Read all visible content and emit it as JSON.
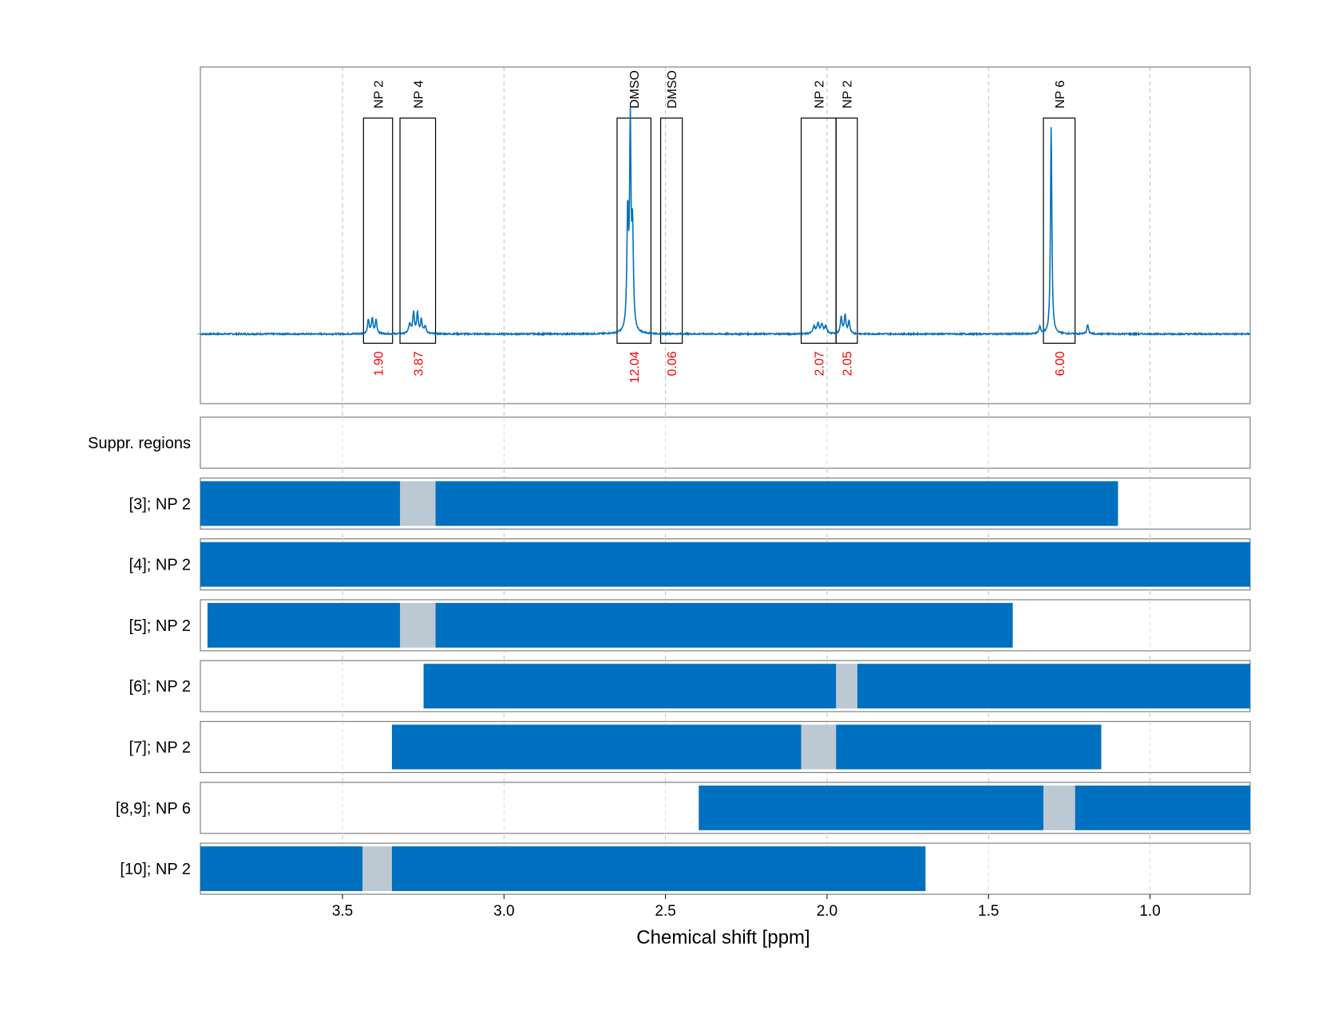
{
  "chart_data": {
    "type": "nmr-spectrum-with-range-bars",
    "xlabel": "Chemical shift [ppm]",
    "x_axis_reversed": true,
    "xlim": [
      3.94,
      0.69
    ],
    "x_ticks": [
      3.5,
      3.0,
      2.5,
      2.0,
      1.5,
      1.0
    ],
    "x_tick_labels": [
      "3.5",
      "3.0",
      "2.5",
      "2.0",
      "1.5",
      "1.0"
    ],
    "grid": "dashed vertical gridlines at x ticks",
    "colors": {
      "spectrum": "#0070C0",
      "bar": "#0070C0",
      "bar_gap": "#BCC9D2",
      "integral_label": "#FF0000",
      "grid": "#BFBFBF",
      "frame": "#808080"
    },
    "spectrum": {
      "baseline": 0.0,
      "ylim": [
        -0.3,
        1.15
      ],
      "peaks": [
        {
          "x": 3.42,
          "h": 0.06,
          "w": 0.003
        },
        {
          "x": 3.408,
          "h": 0.065,
          "w": 0.003
        },
        {
          "x": 3.396,
          "h": 0.06,
          "w": 0.003
        },
        {
          "x": 3.292,
          "h": 0.04,
          "w": 0.004
        },
        {
          "x": 3.28,
          "h": 0.09,
          "w": 0.003
        },
        {
          "x": 3.268,
          "h": 0.09,
          "w": 0.003
        },
        {
          "x": 3.256,
          "h": 0.06,
          "w": 0.003
        },
        {
          "x": 3.244,
          "h": 0.03,
          "w": 0.004
        },
        {
          "x": 2.617,
          "h": 0.5,
          "w": 0.003
        },
        {
          "x": 2.609,
          "h": 0.86,
          "w": 0.0025
        },
        {
          "x": 2.602,
          "h": 0.42,
          "w": 0.003
        },
        {
          "x": 2.04,
          "h": 0.03,
          "w": 0.004
        },
        {
          "x": 2.028,
          "h": 0.04,
          "w": 0.004
        },
        {
          "x": 2.016,
          "h": 0.04,
          "w": 0.004
        },
        {
          "x": 2.004,
          "h": 0.03,
          "w": 0.004
        },
        {
          "x": 1.956,
          "h": 0.075,
          "w": 0.003
        },
        {
          "x": 1.944,
          "h": 0.08,
          "w": 0.003
        },
        {
          "x": 1.932,
          "h": 0.055,
          "w": 0.003
        },
        {
          "x": 1.341,
          "h": 0.03,
          "w": 0.003
        },
        {
          "x": 1.306,
          "h": 0.9,
          "w": 0.0025
        },
        {
          "x": 1.193,
          "h": 0.04,
          "w": 0.003
        }
      ]
    },
    "regions": [
      {
        "label": "NP 2",
        "x_from": 3.435,
        "x_to": 3.345,
        "integral": "1.90"
      },
      {
        "label": "NP 4",
        "x_from": 3.322,
        "x_to": 3.212,
        "integral": "3.87"
      },
      {
        "label": "DMSO",
        "x_from": 2.65,
        "x_to": 2.545,
        "integral": "12.04"
      },
      {
        "label": "DMSO",
        "x_from": 2.515,
        "x_to": 2.448,
        "integral": "0.06"
      },
      {
        "label": "NP 2",
        "x_from": 2.08,
        "x_to": 1.972,
        "integral": "2.07"
      },
      {
        "label": "NP 2",
        "x_from": 1.972,
        "x_to": 1.906,
        "integral": "2.05"
      },
      {
        "label": "NP 6",
        "x_from": 1.33,
        "x_to": 1.232,
        "integral": "6.00"
      }
    ],
    "rows": [
      {
        "label": "Suppr. regions",
        "segments": [],
        "gaps": []
      },
      {
        "label": "[3]; NP 2",
        "segments": [
          [
            3.94,
            3.322
          ],
          [
            3.212,
            1.099
          ]
        ],
        "gaps": [
          [
            3.322,
            3.212
          ]
        ]
      },
      {
        "label": "[4]; NP 2",
        "segments": [
          [
            3.94,
            0.69
          ]
        ],
        "gaps": []
      },
      {
        "label": "[5]; NP 2",
        "segments": [
          [
            3.918,
            3.322
          ],
          [
            3.212,
            1.425
          ]
        ],
        "gaps": [
          [
            3.322,
            3.212
          ]
        ]
      },
      {
        "label": "[6]; NP 2",
        "segments": [
          [
            3.249,
            1.972
          ],
          [
            1.906,
            0.69
          ]
        ],
        "gaps": [
          [
            1.972,
            1.906
          ]
        ]
      },
      {
        "label": "[7]; NP 2",
        "segments": [
          [
            3.347,
            2.08
          ],
          [
            1.972,
            1.151
          ]
        ],
        "gaps": [
          [
            2.08,
            1.972
          ]
        ]
      },
      {
        "label": "[8,9]; NP 6",
        "segments": [
          [
            2.397,
            1.33
          ],
          [
            1.232,
            0.69
          ]
        ],
        "gaps": [
          [
            1.33,
            1.232
          ]
        ]
      },
      {
        "label": "[10]; NP 2",
        "segments": [
          [
            3.94,
            3.438
          ],
          [
            3.347,
            1.695
          ]
        ],
        "gaps": [
          [
            3.438,
            3.347
          ]
        ]
      }
    ]
  }
}
